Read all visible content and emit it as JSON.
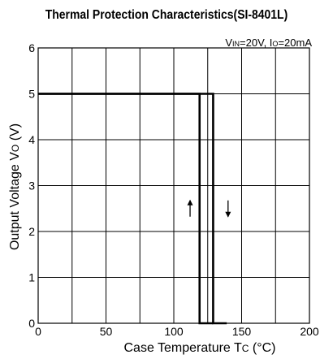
{
  "chart_data": {
    "type": "line",
    "title": "Thermal Protection Characteristics(SI-8401L)",
    "condition": "VIN=20V, IO=20mA",
    "xlabel": "Case Temperature Tc (°C)",
    "ylabel": "Output Voltage Vo (V)",
    "xlim": [
      0,
      200
    ],
    "ylim": [
      0,
      6
    ],
    "xticks": [
      0,
      50,
      100,
      150,
      200
    ],
    "yticks": [
      0,
      1,
      2,
      3,
      4,
      5,
      6
    ],
    "grid": true,
    "series": [
      {
        "x": [
          0,
          129,
          129,
          139
        ],
        "y": [
          5,
          5,
          0,
          0
        ]
      },
      {
        "x": [
          0,
          119,
          119,
          129
        ],
        "y": [
          5,
          5,
          0,
          0
        ]
      }
    ],
    "annotations": [
      {
        "symbol": "↑",
        "x": 112,
        "y": 2.5
      },
      {
        "symbol": "↓",
        "x": 140,
        "y": 2.5
      }
    ]
  }
}
